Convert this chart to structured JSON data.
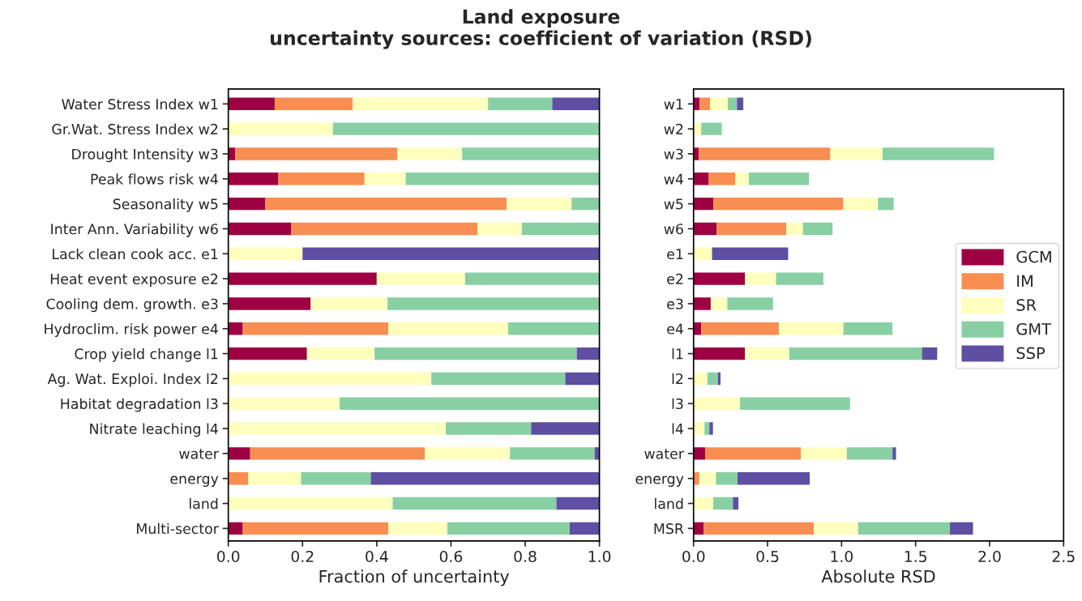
{
  "chart_data": [
    {
      "type": "bar",
      "orientation": "horizontal",
      "stacked": true,
      "title": "Land exposure\nuncertainty sources: coefficient of variation (RSD)",
      "xlabel": "Fraction of uncertainty",
      "xlim": [
        0,
        1
      ],
      "xticks": [
        {
          "value": 0,
          "label": "0.0"
        },
        {
          "value": 0.2,
          "label": "0.2"
        },
        {
          "value": 0.4,
          "label": "0.4"
        },
        {
          "value": 0.6,
          "label": "0.6"
        },
        {
          "value": 0.8,
          "label": "0.8"
        },
        {
          "value": 1,
          "label": "1.0"
        }
      ],
      "grid": false,
      "legend": false,
      "categories": [
        "Water Stress Index w1",
        "Gr.Wat. Stress Index w2",
        "Drought Intensity w3",
        "Peak flows risk w4",
        "Seasonality w5",
        "Inter Ann. Variability w6",
        "Lack clean cook acc. e1",
        "Heat event exposure e2",
        "Cooling dem. growth. e3",
        "Hydroclim. risk power e4",
        "Crop yield change l1",
        "Ag. Wat. Exploi. Index l2",
        "Habitat degradation l3",
        "Nitrate leaching l4",
        "water",
        "energy",
        "land",
        "Multi-sector"
      ],
      "series": [
        {
          "color": "#9e0142",
          "values": [
            0.125,
            0,
            0.019,
            0.135,
            0.1,
            0.17,
            0,
            0.4,
            0.222,
            0.039,
            0.212,
            0,
            0,
            0,
            0.059,
            0,
            0,
            0.039
          ]
        },
        {
          "color": "#f98e52",
          "values": [
            0.21,
            0,
            0.437,
            0.232,
            0.65,
            0.502,
            0,
            0,
            0,
            0.392,
            0,
            0,
            0,
            0,
            0.471,
            0.054,
            0,
            0.392
          ]
        },
        {
          "color": "#ffffbe",
          "values": [
            0.365,
            0.282,
            0.174,
            0.111,
            0.175,
            0.119,
            0.2,
            0.238,
            0.207,
            0.323,
            0.182,
            0.547,
            0.3,
            0.586,
            0.229,
            0.142,
            0.443,
            0.159
          ]
        },
        {
          "color": "#88d0a4",
          "values": [
            0.173,
            0.718,
            0.37,
            0.522,
            0.075,
            0.209,
            0,
            0.362,
            0.571,
            0.246,
            0.545,
            0.361,
            0.7,
            0.23,
            0.228,
            0.188,
            0.441,
            0.33
          ]
        },
        {
          "color": "#5e4fa2",
          "values": [
            0.127,
            0,
            0,
            0,
            0,
            0,
            0.8,
            0,
            0,
            0,
            0.061,
            0.092,
            0,
            0.184,
            0.013,
            0.616,
            0.116,
            0.08
          ]
        }
      ]
    },
    {
      "type": "bar",
      "orientation": "horizontal",
      "stacked": true,
      "xlabel": "Absolute RSD",
      "xlim": [
        0,
        2.5
      ],
      "xticks": [
        {
          "value": 0,
          "label": "0.0"
        },
        {
          "value": 0.5,
          "label": "0.5"
        },
        {
          "value": 1,
          "label": "1.0"
        },
        {
          "value": 1.5,
          "label": "1.5"
        },
        {
          "value": 2,
          "label": "2.0"
        },
        {
          "value": 2.5,
          "label": "2.5"
        }
      ],
      "grid": false,
      "legend": "right",
      "categories": [
        "w1",
        "w2",
        "w3",
        "w4",
        "w5",
        "w6",
        "e1",
        "e2",
        "e3",
        "e4",
        "l1",
        "l2",
        "l3",
        "l4",
        "water",
        "energy",
        "land",
        "MSR"
      ],
      "series": [
        {
          "name": "GCM",
          "color": "#9e0142",
          "values": [
            0.041,
            0,
            0.034,
            0.103,
            0.133,
            0.155,
            0,
            0.348,
            0.116,
            0.052,
            0.348,
            0,
            0,
            0,
            0.078,
            0,
            0,
            0.069
          ]
        },
        {
          "name": "IM",
          "color": "#f98e52",
          "values": [
            0.07,
            0,
            0.89,
            0.18,
            0.879,
            0.471,
            0,
            0,
            0,
            0.525,
            0,
            0,
            0,
            0,
            0.647,
            0.039,
            0,
            0.744
          ]
        },
        {
          "name": "SR",
          "color": "#ffffbe",
          "values": [
            0.12,
            0.052,
            0.353,
            0.091,
            0.234,
            0.113,
            0.125,
            0.209,
            0.112,
            0.435,
            0.298,
            0.094,
            0.314,
            0.074,
            0.31,
            0.112,
            0.133,
            0.299
          ]
        },
        {
          "name": "GMT",
          "color": "#88d0a4",
          "values": [
            0.062,
            0.139,
            0.753,
            0.406,
            0.106,
            0.2,
            0,
            0.32,
            0.309,
            0.332,
            0.897,
            0.07,
            0.743,
            0.033,
            0.309,
            0.146,
            0.133,
            0.62
          ]
        },
        {
          "name": "SSP",
          "color": "#5e4fa2",
          "values": [
            0.043,
            0,
            0,
            0,
            0,
            0,
            0.514,
            0,
            0,
            0,
            0.103,
            0.018,
            0,
            0.024,
            0.024,
            0.488,
            0.037,
            0.156
          ]
        }
      ]
    }
  ]
}
